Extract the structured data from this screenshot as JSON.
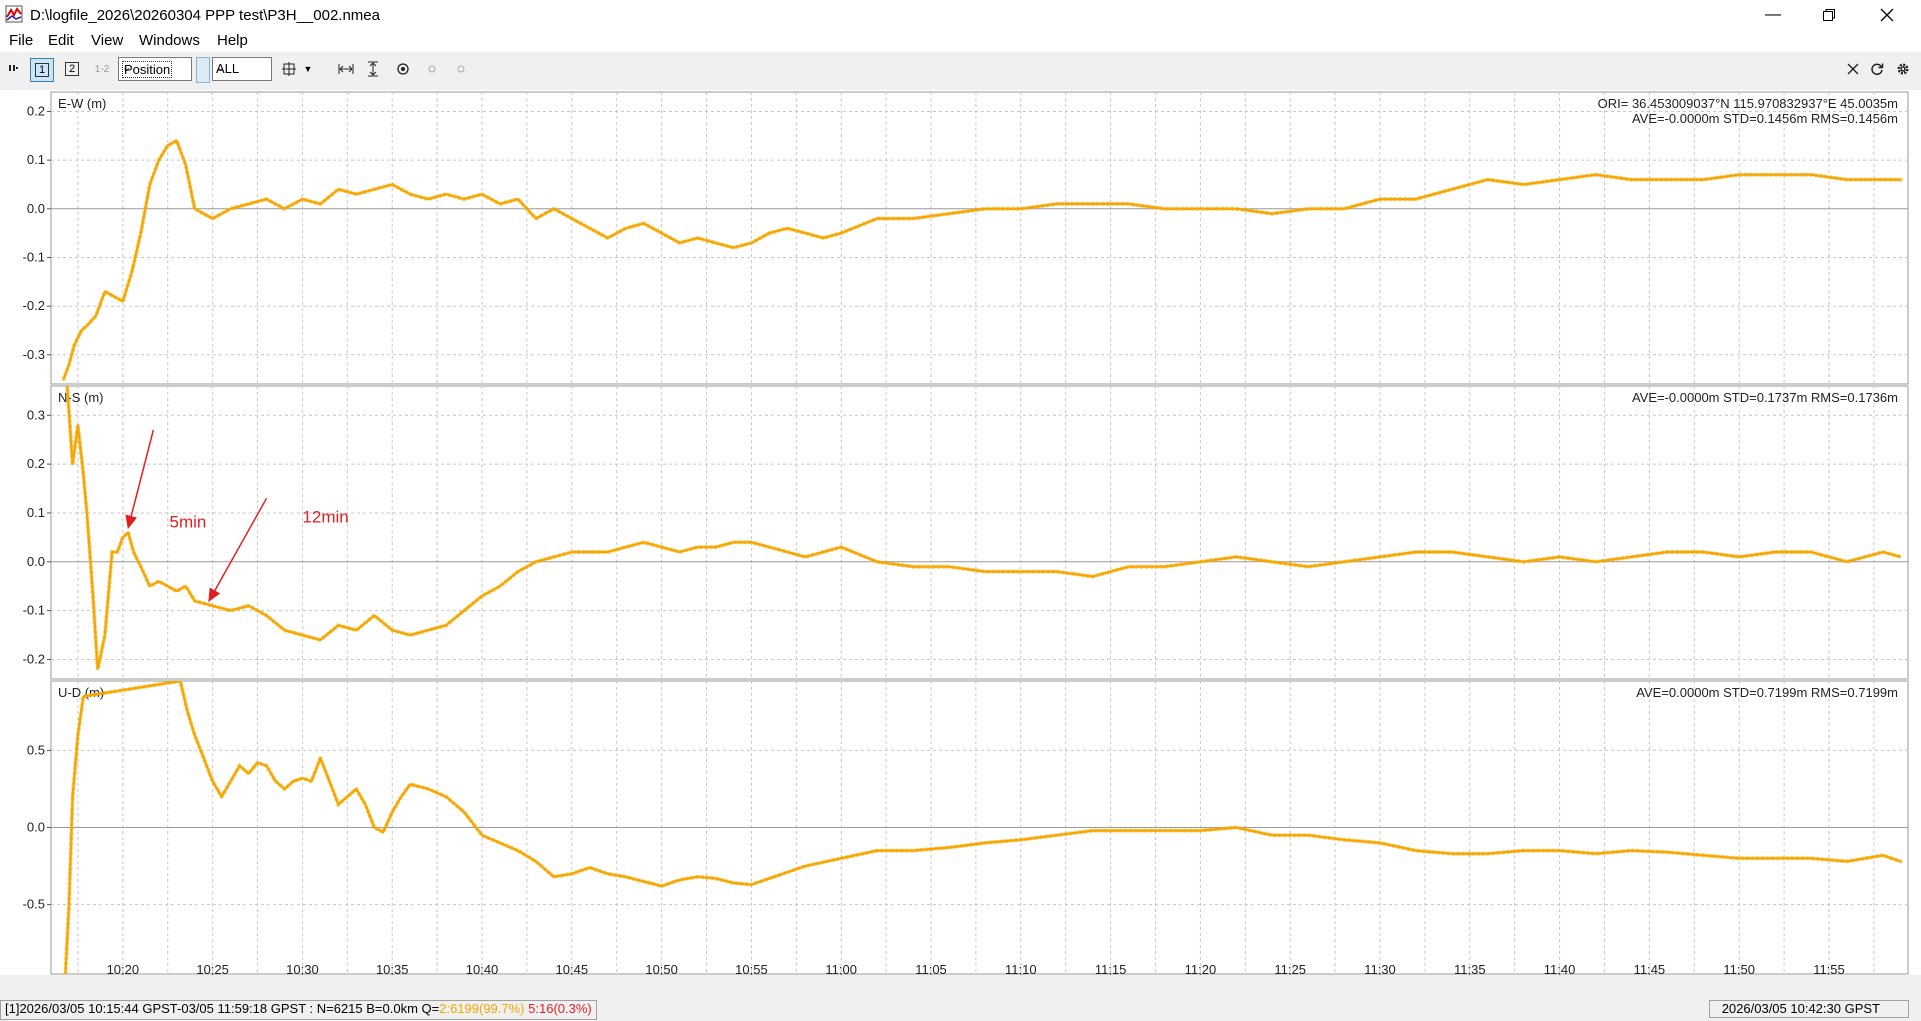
{
  "window": {
    "title": "D:\\logfile_2026\\20260304 PPP test\\P3H__002.nmea",
    "minimize_icon": "minimize-icon",
    "maximize_icon": "restore-icon",
    "close_icon": "close-icon"
  },
  "menu": [
    "File",
    "Edit",
    "View",
    "Windows",
    "Help"
  ],
  "toolbar": {
    "btn1": "1",
    "btn2": "2",
    "btn12": "1-2",
    "plot_type": "Position",
    "sat_filter": "ALL"
  },
  "chart_data": [
    {
      "type": "line",
      "label": "E-W (m)",
      "info_lines": [
        "ORI= 36.453009037°N  115.970832937°E 45.0035m",
        "AVE=-0.0000m STD=0.1456m RMS=0.1456m"
      ],
      "yticks": [
        0.2,
        0.1,
        0.0,
        -0.1,
        -0.2,
        -0.3
      ],
      "ytick_labels": [
        "0.2",
        "0.1",
        "0.0",
        "-0.1",
        "-0.2",
        "-0.3"
      ],
      "ylim": [
        -0.36,
        0.24
      ],
      "color": "#f5a700",
      "x": [
        16.7,
        17.0,
        17.3,
        17.7,
        18.0,
        18.5,
        19.0,
        19.5,
        20.0,
        20.5,
        21.0,
        21.5,
        22.0,
        22.5,
        23.0,
        23.5,
        24.0,
        25.0,
        26.0,
        27.0,
        28.0,
        29.0,
        30.0,
        31.0,
        32.0,
        33.0,
        34.0,
        35.0,
        36.0,
        37.0,
        38.0,
        39.0,
        40.0,
        41.0,
        42.0,
        43.0,
        44.0,
        45.0,
        46.0,
        47.0,
        48.0,
        49.0,
        50.0,
        51.0,
        52.0,
        53.0,
        54.0,
        55.0,
        56.0,
        57.0,
        58.0,
        59.0,
        60.0,
        62.0,
        64.0,
        66.0,
        68.0,
        70.0,
        72.0,
        74.0,
        76.0,
        78.0,
        80.0,
        82.0,
        84.0,
        86.0,
        88.0,
        90.0,
        92.0,
        94.0,
        96.0,
        98.0,
        100.0,
        102.0,
        104.0,
        106.0,
        108.0,
        110.0,
        112.0,
        114.0,
        116.0,
        118.0,
        119.0
      ],
      "y": [
        -0.35,
        -0.32,
        -0.28,
        -0.25,
        -0.24,
        -0.22,
        -0.17,
        -0.18,
        -0.19,
        -0.13,
        -0.05,
        0.05,
        0.1,
        0.13,
        0.14,
        0.09,
        0.0,
        -0.02,
        0.0,
        0.01,
        0.02,
        0.0,
        0.02,
        0.01,
        0.04,
        0.03,
        0.04,
        0.05,
        0.03,
        0.02,
        0.03,
        0.02,
        0.03,
        0.01,
        0.02,
        -0.02,
        0.0,
        -0.02,
        -0.04,
        -0.06,
        -0.04,
        -0.03,
        -0.05,
        -0.07,
        -0.06,
        -0.07,
        -0.08,
        -0.07,
        -0.05,
        -0.04,
        -0.05,
        -0.06,
        -0.05,
        -0.02,
        -0.02,
        -0.01,
        0.0,
        0.0,
        0.01,
        0.01,
        0.01,
        0.0,
        0.0,
        0.0,
        -0.01,
        0.0,
        0.0,
        0.02,
        0.02,
        0.04,
        0.06,
        0.05,
        0.06,
        0.07,
        0.06,
        0.06,
        0.06,
        0.07,
        0.07,
        0.07,
        0.06,
        0.06,
        0.06
      ]
    },
    {
      "type": "line",
      "label": "N-S (m)",
      "info_lines": [
        "AVE=-0.0000m STD=0.1737m RMS=0.1736m"
      ],
      "yticks": [
        0.3,
        0.2,
        0.1,
        0.0,
        -0.1,
        -0.2
      ],
      "ytick_labels": [
        "0.3",
        "0.2",
        "0.1",
        "0.0",
        "-0.1",
        "-0.2"
      ],
      "ylim": [
        -0.24,
        0.36
      ],
      "color": "#f5a700",
      "x": [
        16.9,
        17.2,
        17.5,
        17.8,
        18.0,
        18.3,
        18.6,
        19.0,
        19.4,
        19.7,
        20.0,
        20.3,
        20.6,
        21.0,
        21.5,
        22.0,
        22.5,
        23.0,
        23.5,
        24.0,
        25.0,
        26.0,
        27.0,
        28.0,
        29.0,
        30.0,
        31.0,
        32.0,
        33.0,
        34.0,
        35.0,
        36.0,
        37.0,
        38.0,
        39.0,
        40.0,
        41.0,
        42.0,
        43.0,
        44.0,
        45.0,
        46.0,
        47.0,
        48.0,
        49.0,
        50.0,
        51.0,
        52.0,
        53.0,
        54.0,
        55.0,
        56.0,
        58.0,
        60.0,
        62.0,
        64.0,
        66.0,
        68.0,
        70.0,
        72.0,
        74.0,
        76.0,
        78.0,
        80.0,
        82.0,
        84.0,
        86.0,
        88.0,
        90.0,
        92.0,
        94.0,
        96.0,
        98.0,
        100.0,
        102.0,
        104.0,
        106.0,
        108.0,
        110.0,
        112.0,
        114.0,
        116.0,
        118.0,
        119.0
      ],
      "y": [
        0.36,
        0.2,
        0.28,
        0.18,
        0.1,
        -0.05,
        -0.22,
        -0.15,
        0.02,
        0.02,
        0.05,
        0.06,
        0.02,
        -0.01,
        -0.05,
        -0.04,
        -0.05,
        -0.06,
        -0.05,
        -0.08,
        -0.09,
        -0.1,
        -0.09,
        -0.11,
        -0.14,
        -0.15,
        -0.16,
        -0.13,
        -0.14,
        -0.11,
        -0.14,
        -0.15,
        -0.14,
        -0.13,
        -0.1,
        -0.07,
        -0.05,
        -0.02,
        0.0,
        0.01,
        0.02,
        0.02,
        0.02,
        0.03,
        0.04,
        0.03,
        0.02,
        0.03,
        0.03,
        0.04,
        0.04,
        0.03,
        0.01,
        0.03,
        0.0,
        -0.01,
        -0.01,
        -0.02,
        -0.02,
        -0.02,
        -0.03,
        -0.01,
        -0.01,
        0.0,
        0.01,
        0.0,
        -0.01,
        0.0,
        0.01,
        0.02,
        0.02,
        0.01,
        0.0,
        0.01,
        0.0,
        0.01,
        0.02,
        0.02,
        0.01,
        0.02,
        0.02,
        0.0,
        0.02,
        0.01
      ]
    },
    {
      "type": "line",
      "label": "U-D (m)",
      "info_lines": [
        "AVE=0.0000m STD=0.7199m RMS=0.7199m"
      ],
      "yticks": [
        0.5,
        0.0,
        -0.5
      ],
      "ytick_labels": [
        "0.5",
        "0.0",
        "-0.5"
      ],
      "ylim": [
        -0.95,
        0.95
      ],
      "color": "#f5a700",
      "x": [
        16.8,
        17.0,
        17.2,
        17.5,
        17.8,
        23.2,
        23.6,
        24.0,
        24.5,
        25.0,
        25.5,
        26.0,
        26.5,
        27.0,
        27.5,
        28.0,
        28.5,
        29.0,
        29.5,
        30.0,
        30.5,
        31.0,
        31.5,
        32.0,
        32.5,
        33.0,
        33.5,
        34.0,
        34.5,
        35.0,
        35.5,
        36.0,
        37.0,
        38.0,
        39.0,
        40.0,
        41.0,
        42.0,
        43.0,
        44.0,
        45.0,
        46.0,
        47.0,
        48.0,
        49.0,
        50.0,
        51.0,
        52.0,
        53.0,
        54.0,
        55.0,
        56.0,
        58.0,
        60.0,
        62.0,
        64.0,
        66.0,
        68.0,
        70.0,
        72.0,
        74.0,
        76.0,
        78.0,
        80.0,
        82.0,
        84.0,
        86.0,
        88.0,
        90.0,
        92.0,
        94.0,
        96.0,
        98.0,
        100.0,
        102.0,
        104.0,
        106.0,
        108.0,
        110.0,
        112.0,
        114.0,
        116.0,
        118.0,
        119.0
      ],
      "y": [
        -0.95,
        -0.5,
        0.2,
        0.6,
        0.85,
        0.95,
        0.75,
        0.6,
        0.45,
        0.3,
        0.2,
        0.3,
        0.4,
        0.35,
        0.42,
        0.4,
        0.3,
        0.25,
        0.3,
        0.32,
        0.3,
        0.45,
        0.3,
        0.15,
        0.2,
        0.25,
        0.15,
        0.0,
        -0.03,
        0.1,
        0.2,
        0.28,
        0.25,
        0.2,
        0.1,
        -0.05,
        -0.1,
        -0.15,
        -0.22,
        -0.32,
        -0.3,
        -0.26,
        -0.3,
        -0.32,
        -0.35,
        -0.38,
        -0.34,
        -0.32,
        -0.33,
        -0.36,
        -0.37,
        -0.33,
        -0.25,
        -0.2,
        -0.15,
        -0.15,
        -0.13,
        -0.1,
        -0.08,
        -0.05,
        -0.02,
        -0.02,
        -0.02,
        -0.02,
        0.0,
        -0.05,
        -0.05,
        -0.08,
        -0.1,
        -0.15,
        -0.17,
        -0.17,
        -0.15,
        -0.15,
        -0.17,
        -0.15,
        -0.16,
        -0.18,
        -0.2,
        -0.2,
        -0.2,
        -0.22,
        -0.18,
        -0.22
      ]
    }
  ],
  "x_axis": {
    "xlim": [
      16.0,
      119.4
    ],
    "ticks": [
      20,
      25,
      30,
      35,
      40,
      45,
      50,
      55,
      60,
      65,
      70,
      75,
      80,
      85,
      90,
      95,
      100,
      105,
      110,
      115
    ],
    "tick_labels": [
      "10:20",
      "10:25",
      "10:30",
      "10:35",
      "10:40",
      "10:45",
      "10:50",
      "10:55",
      "11:00",
      "11:05",
      "11:10",
      "11:15",
      "11:20",
      "11:25",
      "11:30",
      "11:35",
      "11:40",
      "11:45",
      "11:50",
      "11:55"
    ],
    "minor_step": 2.5
  },
  "annotations": [
    {
      "text": "5min",
      "panel": 1,
      "arrow_from": [
        21.7,
        0.27
      ],
      "arrow_to": [
        20.3,
        0.07
      ],
      "label_at": [
        22.6,
        0.07
      ]
    },
    {
      "text": "12min",
      "panel": 1,
      "arrow_from": [
        28.0,
        0.13
      ],
      "arrow_to": [
        24.8,
        -0.08
      ],
      "label_at": [
        30.0,
        0.08
      ]
    }
  ],
  "status": {
    "left_main": "[1]2026/03/05 10:15:44 GPST-03/05 11:59:18 GPST : N=6215 B=0.0km Q=",
    "left_q2": "2:6199(99.7%)",
    "left_q5": "5:16(0.3%)",
    "right": "2026/03/05 10:42:30 GPST"
  }
}
